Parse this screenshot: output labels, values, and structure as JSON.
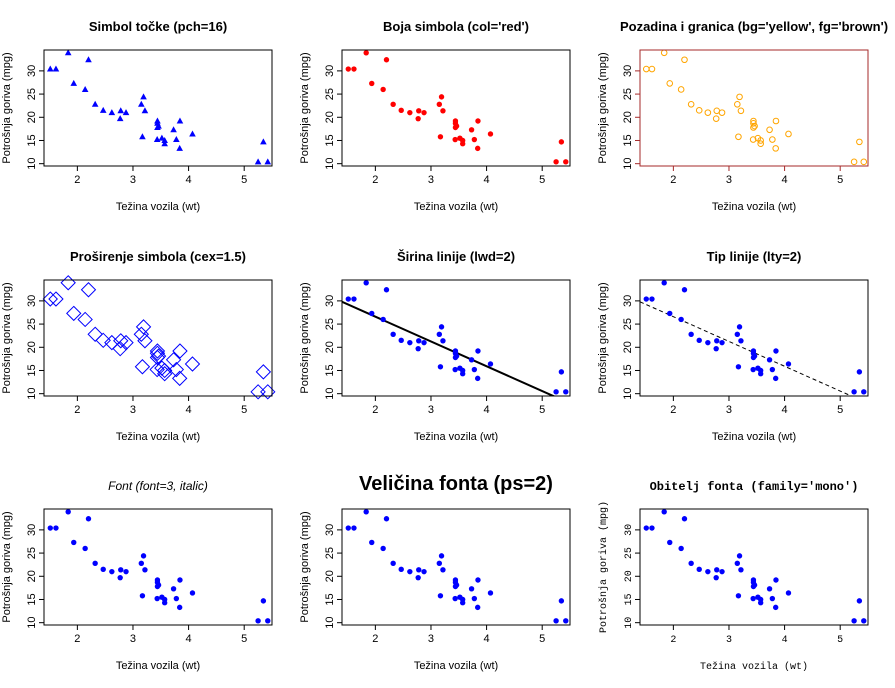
{
  "chart_data": {
    "type": "scatter",
    "xlabel": "Težina vozila (wt)",
    "ylabel": "Potrošnja goriva (mpg)",
    "xlim": [
      1.4,
      5.5
    ],
    "ylim": [
      9.5,
      34.5
    ],
    "x_ticks": [
      2,
      3,
      4,
      5
    ],
    "y_ticks": [
      10,
      15,
      20,
      25,
      30
    ],
    "x": [
      2.62,
      2.875,
      2.32,
      3.215,
      3.44,
      3.46,
      3.57,
      3.19,
      3.15,
      3.44,
      3.44,
      4.07,
      3.73,
      3.78,
      5.25,
      5.424,
      5.345,
      2.2,
      1.615,
      1.835,
      2.465,
      3.52,
      3.435,
      3.84,
      3.845,
      1.935,
      2.14,
      1.513,
      3.17,
      2.77,
      3.57,
      2.78
    ],
    "y": [
      21.0,
      21.0,
      22.8,
      21.4,
      18.7,
      18.1,
      14.3,
      24.4,
      22.8,
      19.2,
      17.8,
      16.4,
      17.3,
      15.2,
      10.4,
      10.4,
      14.7,
      32.4,
      30.4,
      33.9,
      21.5,
      15.5,
      15.2,
      13.3,
      19.2,
      27.3,
      26.0,
      30.4,
      15.8,
      19.7,
      15.0,
      21.4
    ],
    "regression": {
      "intercept": 37.285,
      "slope": -5.344
    },
    "panels": [
      {
        "title": "Simbol točke (pch=16)",
        "point_shape": "triangle",
        "point_color": "#0000ff"
      },
      {
        "title": "Boja simbola (col='red')",
        "point_shape": "circle",
        "point_color": "#ff0000"
      },
      {
        "title": "Pozadina i granica (bg='yellow', fg='brown')",
        "point_shape": "open-circle",
        "point_color": "#ffa500",
        "frame_color": "#a52a2a"
      },
      {
        "title": "Proširenje simbola (cex=1.5)",
        "point_shape": "diamond",
        "point_color": "#0000ff"
      },
      {
        "title": "Širina linije (lwd=2)",
        "point_shape": "circle",
        "point_color": "#0000ff",
        "line": "solid"
      },
      {
        "title": "Tip linije (lty=2)",
        "point_shape": "circle",
        "point_color": "#0000ff",
        "line": "dashed"
      },
      {
        "title": "Font (font=3, italic)",
        "point_shape": "circle",
        "point_color": "#0000ff",
        "title_style": "italic"
      },
      {
        "title": "Veličina fonta (ps=2)",
        "point_shape": "circle",
        "point_color": "#0000ff",
        "title_style": "big"
      },
      {
        "title": "Obitelj fonta (family='mono')",
        "point_shape": "circle",
        "point_color": "#0000ff",
        "title_style": "mono"
      }
    ]
  }
}
